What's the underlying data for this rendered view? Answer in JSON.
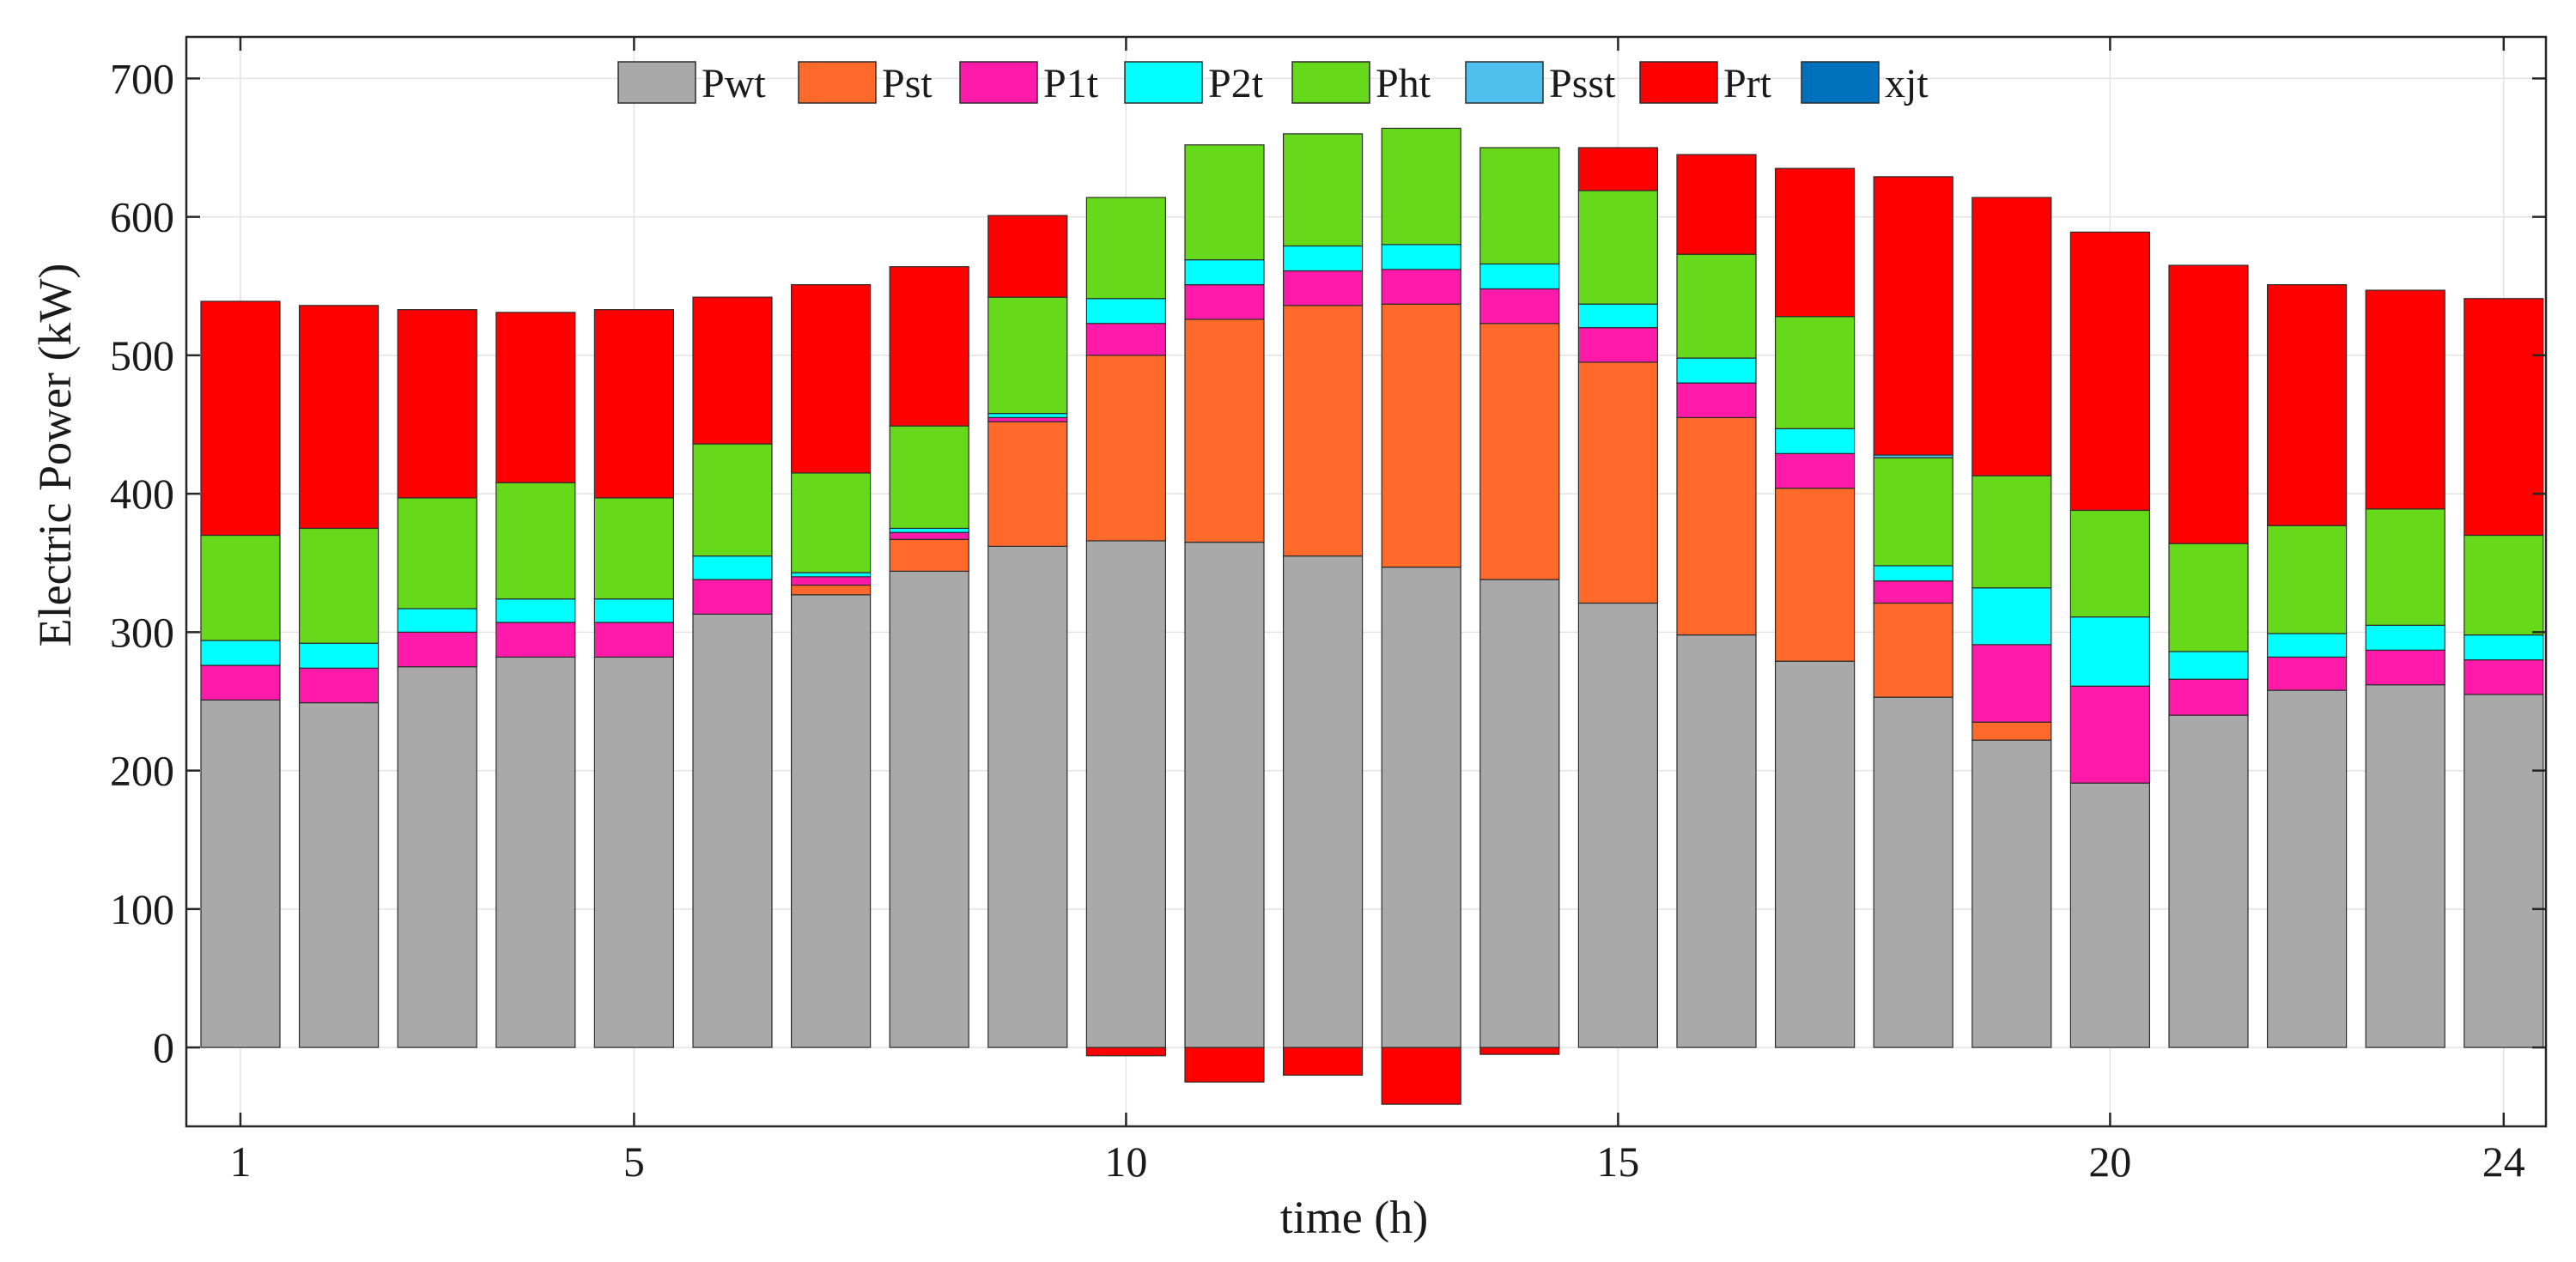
{
  "chart_data": {
    "type": "bar",
    "stacked": true,
    "title": "",
    "xlabel": "time (h)",
    "ylabel": "Electric Power (kW)",
    "x": [
      1,
      2,
      3,
      4,
      5,
      6,
      7,
      8,
      9,
      10,
      11,
      12,
      13,
      14,
      15,
      16,
      17,
      18,
      19,
      20,
      21,
      22,
      23,
      24
    ],
    "xticks": [
      1,
      5,
      10,
      15,
      20,
      24
    ],
    "ylim": [
      -57,
      730
    ],
    "yticks": [
      0,
      100,
      200,
      300,
      400,
      500,
      600,
      700
    ],
    "grid": true,
    "legend_position": "top",
    "series": [
      {
        "name": "Pwt",
        "color": "#a9a9a9",
        "values": [
          251,
          249,
          275,
          282,
          282,
          313,
          327,
          344,
          362,
          366,
          365,
          355,
          347,
          338,
          321,
          298,
          279,
          253,
          222,
          191,
          240,
          258,
          262,
          255
        ]
      },
      {
        "name": "Pst",
        "color": "#ff6a2a",
        "values": [
          0,
          0,
          0,
          0,
          0,
          0,
          7,
          23,
          90,
          134,
          161,
          181,
          190,
          185,
          174,
          157,
          125,
          68,
          13,
          0,
          0,
          0,
          0,
          0
        ]
      },
      {
        "name": "P1t",
        "color": "#ff1aaa",
        "values": [
          25,
          25,
          25,
          25,
          25,
          25,
          6,
          5,
          3,
          23,
          25,
          25,
          25,
          25,
          25,
          25,
          25,
          16,
          56,
          70,
          26,
          24,
          25,
          25
        ]
      },
      {
        "name": "P2t",
        "color": "#00ffff",
        "values": [
          18,
          18,
          17,
          17,
          17,
          17,
          3,
          3,
          3,
          18,
          18,
          18,
          18,
          18,
          17,
          18,
          18,
          11,
          41,
          50,
          20,
          17,
          18,
          18
        ]
      },
      {
        "name": "Pht",
        "color": "#66d91a",
        "values": [
          76,
          83,
          80,
          84,
          73,
          81,
          72,
          74,
          84,
          73,
          83,
          81,
          84,
          84,
          82,
          75,
          81,
          78,
          81,
          77,
          78,
          78,
          84,
          72
        ]
      },
      {
        "name": "Psst",
        "color": "#4fc0ee",
        "values": [
          0,
          0,
          0,
          0,
          0,
          0,
          0,
          0,
          0,
          0,
          0,
          0,
          0,
          0,
          0,
          0,
          0,
          2,
          0,
          0,
          0,
          0,
          0,
          0
        ]
      },
      {
        "name": "Prt",
        "color": "#ff0000",
        "values": [
          169,
          161,
          136,
          123,
          136,
          106,
          136,
          115,
          59,
          -6,
          -25,
          -20,
          -41,
          -5,
          31,
          72,
          107,
          201,
          201,
          201,
          201,
          174,
          158,
          171
        ]
      },
      {
        "name": "xjt",
        "color": "#0072bd",
        "values": [
          0,
          0,
          0,
          0,
          0,
          0,
          0,
          0,
          0,
          0,
          0,
          0,
          0,
          0,
          0,
          0,
          0,
          0,
          0,
          0,
          0,
          0,
          0,
          0
        ]
      }
    ]
  }
}
